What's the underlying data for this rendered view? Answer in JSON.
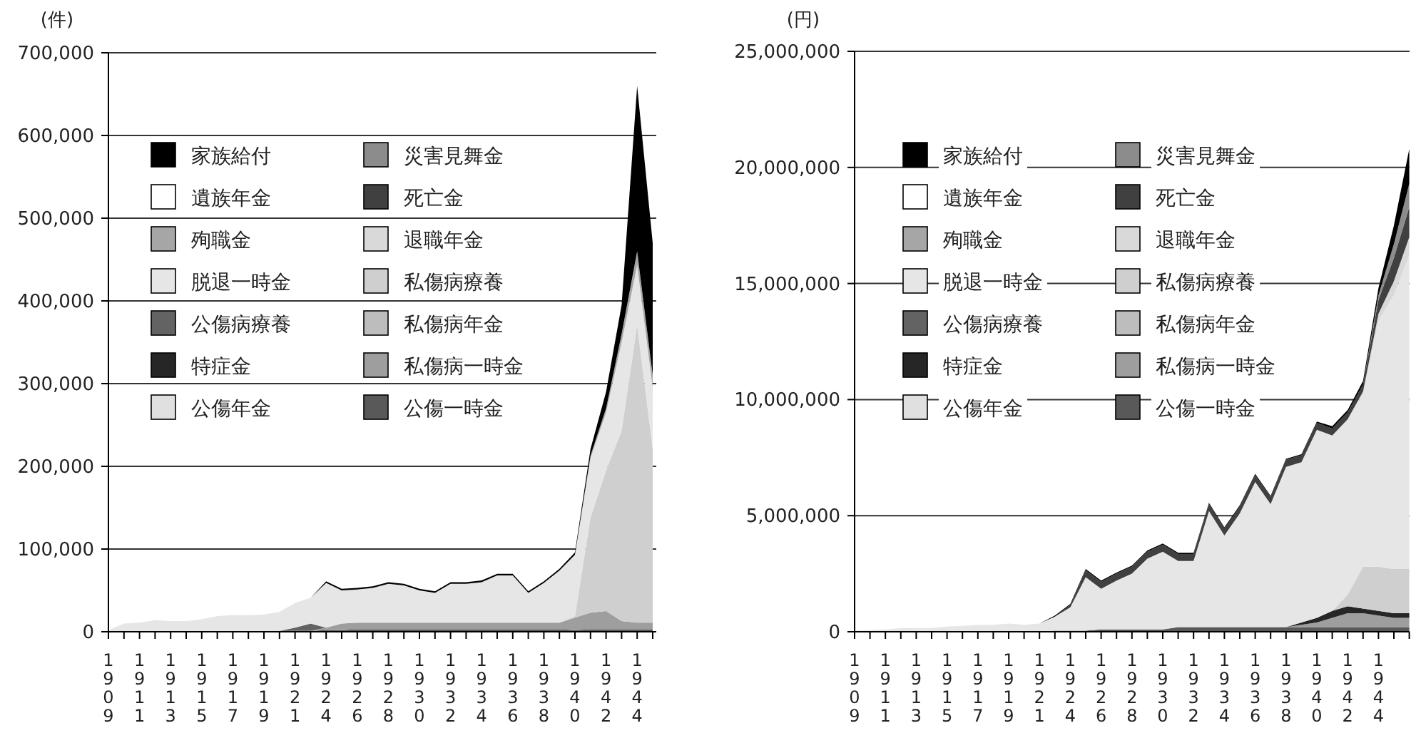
{
  "chart_data": [
    {
      "type": "area",
      "stacked": true,
      "ylabel": "(件)",
      "categories": [
        "1909",
        null,
        "1911",
        null,
        "1913",
        null,
        "1915",
        null,
        "1917",
        null,
        "1919",
        null,
        "1921",
        null,
        "1924",
        null,
        "1926",
        null,
        "1928",
        null,
        "1930",
        null,
        "1932",
        null,
        "1934",
        null,
        "1936",
        null,
        "1938",
        null,
        "1940",
        null,
        "1942",
        null,
        "1944",
        null
      ],
      "ylim": [
        0,
        700000
      ],
      "yticks": [
        {
          "value": 0,
          "label": "0"
        },
        {
          "value": 100000,
          "label": "100,000"
        },
        {
          "value": 200000,
          "label": "200,000"
        },
        {
          "value": 300000,
          "label": "300,000"
        },
        {
          "value": 400000,
          "label": "400,000"
        },
        {
          "value": 500000,
          "label": "500,000"
        },
        {
          "value": 600000,
          "label": "600,000"
        },
        {
          "value": 700000,
          "label": "700,000"
        }
      ],
      "grid": "y",
      "legend": "top left",
      "series": [
        {
          "name": "公傷一時金",
          "color": "#595959",
          "values": [
            0,
            0,
            0,
            0,
            0,
            0,
            0,
            0,
            0,
            0,
            0,
            1000,
            1000,
            1000,
            2000,
            2000,
            3000,
            3000,
            3000,
            3000,
            3000,
            3000,
            3000,
            3000,
            3000,
            3000,
            3000,
            3000,
            3000,
            3000,
            2000,
            3000,
            3000,
            3000,
            3000,
            3000
          ]
        },
        {
          "name": "公傷年金",
          "color": "#e0e0e0",
          "values": [
            null,
            null,
            null,
            null,
            null,
            null,
            null,
            null,
            null,
            null,
            null,
            null,
            null,
            null,
            null,
            null,
            null,
            null,
            null,
            null,
            null,
            null,
            null,
            null,
            null,
            null,
            null,
            null,
            null,
            null,
            null,
            null,
            null,
            null,
            null,
            null
          ]
        },
        {
          "name": "私傷病一時金",
          "color": "#9e9e9e",
          "values": [
            0,
            0,
            0,
            0,
            0,
            0,
            0,
            0,
            0,
            0,
            0,
            0,
            0,
            0,
            3000,
            8000,
            8000,
            8000,
            8000,
            8000,
            8000,
            8000,
            8000,
            8000,
            8000,
            8000,
            8000,
            8000,
            8000,
            8000,
            15000,
            20000,
            22000,
            10000,
            8000,
            8000
          ]
        },
        {
          "name": "特症金",
          "color": "#262626",
          "values": [
            null,
            null,
            null,
            null,
            null,
            null,
            null,
            null,
            null,
            null,
            null,
            null,
            null,
            null,
            null,
            null,
            null,
            null,
            null,
            null,
            null,
            null,
            null,
            null,
            null,
            null,
            null,
            null,
            null,
            null,
            null,
            null,
            null,
            null,
            null,
            null
          ]
        },
        {
          "name": "私傷病年金",
          "color": "#bdbdbd",
          "values": [
            null,
            null,
            null,
            null,
            null,
            null,
            null,
            null,
            null,
            null,
            null,
            null,
            null,
            null,
            null,
            null,
            null,
            null,
            null,
            null,
            null,
            null,
            null,
            null,
            null,
            null,
            null,
            null,
            null,
            null,
            null,
            null,
            null,
            null,
            null,
            null
          ]
        },
        {
          "name": "公傷病療養",
          "color": "#636363",
          "values": [
            null,
            null,
            null,
            null,
            null,
            null,
            null,
            null,
            null,
            null,
            null,
            0,
            4000,
            9000,
            0,
            null,
            null,
            null,
            null,
            null,
            null,
            null,
            null,
            null,
            null,
            null,
            null,
            null,
            null,
            null,
            null,
            null,
            null,
            null,
            null,
            null
          ]
        },
        {
          "name": "私傷病療養",
          "color": "#cfcfcf",
          "values": [
            0,
            0,
            0,
            0,
            0,
            0,
            0,
            0,
            0,
            0,
            0,
            0,
            0,
            0,
            0,
            0,
            0,
            0,
            0,
            0,
            0,
            0,
            0,
            0,
            0,
            0,
            0,
            0,
            0,
            0,
            2000,
            115000,
            170000,
            230000,
            360000,
            210000
          ]
        },
        {
          "name": "脱退一時金",
          "color": "#e6e6e6",
          "values": [
            2000,
            10000,
            11000,
            14000,
            13000,
            13000,
            15000,
            19000,
            20000,
            20000,
            21000,
            23000,
            30000,
            31000,
            54000,
            40000,
            40000,
            42000,
            47000,
            45000,
            39000,
            36000,
            47000,
            47000,
            49000,
            57000,
            57000,
            36000,
            48000,
            63000,
            74000,
            72000,
            70000,
            107000,
            72000,
            74000
          ]
        },
        {
          "name": "退職年金",
          "color": "#d9d9d9",
          "values": [
            null,
            null,
            null,
            null,
            null,
            null,
            null,
            null,
            null,
            null,
            null,
            null,
            null,
            null,
            null,
            null,
            null,
            null,
            null,
            null,
            null,
            null,
            null,
            null,
            null,
            null,
            null,
            null,
            null,
            null,
            null,
            null,
            null,
            null,
            null,
            null
          ]
        },
        {
          "name": "殉職金",
          "color": "#a6a6a6",
          "values": [
            0,
            0,
            0,
            0,
            0,
            0,
            0,
            0,
            0,
            0,
            0,
            0,
            0,
            0,
            0,
            0,
            0,
            0,
            0,
            0,
            0,
            0,
            0,
            0,
            0,
            0,
            0,
            0,
            0,
            0,
            0,
            3000,
            5000,
            10000,
            17000,
            15000
          ]
        },
        {
          "name": "死亡金",
          "color": "#404040",
          "values": [
            null,
            null,
            null,
            null,
            null,
            null,
            null,
            null,
            null,
            null,
            null,
            null,
            null,
            null,
            null,
            null,
            null,
            null,
            null,
            null,
            null,
            null,
            null,
            null,
            null,
            null,
            null,
            null,
            null,
            null,
            null,
            null,
            null,
            null,
            null,
            null
          ]
        },
        {
          "name": "遺族年金",
          "color": "#ffffff",
          "values": [
            null,
            null,
            null,
            null,
            null,
            null,
            null,
            null,
            null,
            null,
            null,
            null,
            null,
            null,
            null,
            null,
            null,
            null,
            null,
            null,
            null,
            null,
            null,
            null,
            null,
            null,
            null,
            null,
            null,
            null,
            null,
            null,
            null,
            null,
            null,
            null
          ]
        },
        {
          "name": "災害見舞金",
          "color": "#8c8c8c",
          "values": [
            null,
            null,
            null,
            null,
            null,
            null,
            null,
            null,
            null,
            null,
            null,
            null,
            null,
            null,
            null,
            null,
            null,
            null,
            null,
            null,
            null,
            null,
            null,
            null,
            null,
            null,
            null,
            null,
            null,
            null,
            null,
            null,
            null,
            null,
            null,
            null
          ]
        },
        {
          "name": "家族給付",
          "color": "#000000",
          "values": [
            0,
            0,
            0,
            0,
            0,
            0,
            0,
            0,
            0,
            0,
            0,
            0,
            0,
            0,
            2000,
            2000,
            2000,
            2000,
            2000,
            2000,
            2000,
            2000,
            2000,
            2000,
            2000,
            2000,
            2000,
            2000,
            2000,
            2000,
            3000,
            8000,
            20000,
            35000,
            200000,
            160000
          ]
        }
      ]
    },
    {
      "type": "area",
      "stacked": true,
      "ylabel": "(円)",
      "categories": [
        "1909",
        null,
        "1911",
        null,
        "1913",
        null,
        "1915",
        null,
        "1917",
        null,
        "1919",
        null,
        "1921",
        null,
        "1924",
        null,
        "1926",
        null,
        "1928",
        null,
        "1930",
        null,
        "1932",
        null,
        "1934",
        null,
        "1936",
        null,
        "1938",
        null,
        "1940",
        null,
        "1942",
        null,
        "1944",
        null,
        null
      ],
      "ylim": [
        0,
        25000000
      ],
      "yticks": [
        {
          "value": 0,
          "label": "0"
        },
        {
          "value": 5000000,
          "label": "5,000,000"
        },
        {
          "value": 10000000,
          "label": "10,000,000"
        },
        {
          "value": 15000000,
          "label": "15,000,000"
        },
        {
          "value": 20000000,
          "label": "20,000,000"
        },
        {
          "value": 25000000,
          "label": "25,000,000"
        }
      ],
      "grid": "y",
      "legend": "top left",
      "series": [
        {
          "name": "公傷一時金",
          "color": "#595959",
          "values": [
            0,
            0,
            0,
            0,
            0,
            0,
            0,
            0,
            0,
            0,
            0,
            0,
            0,
            50000,
            50000,
            50000,
            100000,
            100000,
            100000,
            100000,
            100000,
            200000,
            200000,
            200000,
            200000,
            200000,
            200000,
            200000,
            200000,
            200000,
            200000,
            200000,
            200000,
            200000,
            200000,
            200000,
            200000
          ]
        },
        {
          "name": "公傷年金",
          "color": "#e0e0e0",
          "values": [
            null,
            null,
            null,
            null,
            null,
            null,
            null,
            null,
            null,
            null,
            null,
            null,
            null,
            null,
            null,
            null,
            null,
            null,
            null,
            null,
            null,
            null,
            null,
            null,
            null,
            null,
            null,
            null,
            null,
            null,
            null,
            null,
            null,
            null,
            null,
            null,
            null
          ]
        },
        {
          "name": "私傷病一時金",
          "color": "#9e9e9e",
          "values": [
            0,
            0,
            0,
            0,
            0,
            0,
            0,
            0,
            0,
            0,
            0,
            0,
            0,
            0,
            0,
            0,
            0,
            0,
            0,
            0,
            0,
            0,
            0,
            0,
            0,
            0,
            0,
            0,
            0,
            100000,
            200000,
            400000,
            600000,
            600000,
            500000,
            400000,
            400000
          ]
        },
        {
          "name": "特症金",
          "color": "#262626",
          "values": [
            0,
            0,
            0,
            0,
            0,
            0,
            0,
            0,
            0,
            0,
            0,
            0,
            0,
            0,
            0,
            0,
            0,
            0,
            0,
            0,
            0,
            0,
            0,
            0,
            0,
            0,
            0,
            0,
            0,
            100000,
            200000,
            300000,
            300000,
            200000,
            200000,
            200000,
            200000
          ]
        },
        {
          "name": "私傷病年金",
          "color": "#bdbdbd",
          "values": [
            null,
            null,
            null,
            null,
            null,
            null,
            null,
            null,
            null,
            null,
            null,
            null,
            null,
            null,
            null,
            null,
            null,
            null,
            null,
            null,
            null,
            null,
            null,
            null,
            null,
            null,
            null,
            null,
            null,
            null,
            null,
            null,
            null,
            null,
            null,
            null,
            null
          ]
        },
        {
          "name": "公傷病療養",
          "color": "#636363",
          "values": [
            null,
            null,
            null,
            null,
            null,
            null,
            null,
            null,
            null,
            null,
            null,
            null,
            null,
            null,
            null,
            null,
            null,
            null,
            null,
            null,
            null,
            null,
            null,
            null,
            null,
            null,
            null,
            null,
            null,
            null,
            null,
            null,
            null,
            null,
            null,
            null,
            null
          ]
        },
        {
          "name": "私傷病療養",
          "color": "#cfcfcf",
          "values": [
            0,
            0,
            0,
            0,
            0,
            0,
            0,
            0,
            0,
            0,
            0,
            0,
            0,
            0,
            0,
            0,
            0,
            0,
            0,
            0,
            0,
            0,
            0,
            0,
            0,
            0,
            0,
            0,
            0,
            0,
            0,
            0,
            500000,
            1800000,
            1900000,
            1900000,
            1900000
          ]
        },
        {
          "name": "脱退一時金",
          "color": "#e6e6e6",
          "values": [
            50000,
            60000,
            100000,
            150000,
            160000,
            160000,
            220000,
            250000,
            290000,
            300000,
            350000,
            300000,
            350000,
            600000,
            1000000,
            2300000,
            1750000,
            2100000,
            2400000,
            3050000,
            3350000,
            2850000,
            2850000,
            5000000,
            3950000,
            4900000,
            6250000,
            5300000,
            6900000,
            6900000,
            8100000,
            7550000,
            7550000,
            7450000,
            10600000,
            11800000,
            13500000
          ]
        },
        {
          "name": "退職年金",
          "color": "#d9d9d9",
          "values": [
            0,
            0,
            0,
            0,
            0,
            0,
            0,
            0,
            0,
            0,
            0,
            0,
            0,
            0,
            0,
            0,
            0,
            0,
            0,
            0,
            0,
            0,
            0,
            0,
            0,
            0,
            0,
            0,
            0,
            0,
            0,
            0,
            0,
            100000,
            300000,
            600000,
            800000
          ]
        },
        {
          "name": "殉職金",
          "color": "#a6a6a6",
          "values": [
            null,
            null,
            null,
            null,
            null,
            null,
            null,
            null,
            null,
            null,
            null,
            null,
            null,
            null,
            null,
            null,
            null,
            null,
            null,
            null,
            null,
            null,
            null,
            null,
            null,
            null,
            null,
            null,
            null,
            null,
            null,
            null,
            null,
            null,
            null,
            null,
            null
          ]
        },
        {
          "name": "死亡金",
          "color": "#404040",
          "values": [
            0,
            0,
            0,
            0,
            0,
            0,
            0,
            0,
            0,
            0,
            0,
            0,
            0,
            0,
            100000,
            300000,
            300000,
            300000,
            300000,
            300000,
            300000,
            300000,
            300000,
            300000,
            300000,
            300000,
            300000,
            300000,
            300000,
            300000,
            300000,
            300000,
            300000,
            300000,
            600000,
            1000000,
            1300000
          ]
        },
        {
          "name": "遺族年金",
          "color": "#ffffff",
          "values": [
            null,
            null,
            null,
            null,
            null,
            null,
            null,
            null,
            null,
            null,
            null,
            null,
            null,
            null,
            null,
            null,
            null,
            null,
            null,
            null,
            null,
            null,
            null,
            null,
            null,
            null,
            null,
            null,
            null,
            null,
            null,
            null,
            null,
            null,
            null,
            null,
            null
          ]
        },
        {
          "name": "災害見舞金",
          "color": "#8c8c8c",
          "values": [
            0,
            0,
            0,
            0,
            0,
            0,
            0,
            0,
            0,
            0,
            0,
            0,
            0,
            0,
            0,
            0,
            0,
            0,
            0,
            0,
            0,
            0,
            0,
            0,
            0,
            0,
            0,
            0,
            0,
            0,
            0,
            0,
            0,
            0,
            200000,
            600000,
            1000000
          ]
        },
        {
          "name": "家族給付",
          "color": "#000000",
          "values": [
            0,
            0,
            0,
            0,
            0,
            0,
            0,
            0,
            0,
            0,
            0,
            0,
            0,
            50000,
            50000,
            50000,
            50000,
            50000,
            50000,
            50000,
            50000,
            50000,
            50000,
            50000,
            50000,
            50000,
            50000,
            50000,
            50000,
            50000,
            50000,
            100000,
            100000,
            150000,
            300000,
            800000,
            1500000
          ]
        }
      ]
    }
  ]
}
